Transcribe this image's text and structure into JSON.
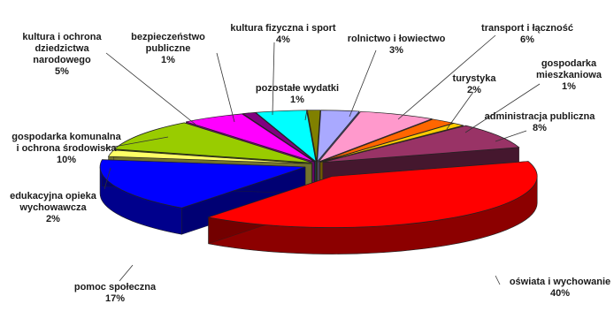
{
  "chart_data": {
    "type": "pie",
    "style": "3d-exploded",
    "legend": "none",
    "slices": [
      {
        "label": "rolnictwo i łowiectwo",
        "percent_text": "3%",
        "value": 3,
        "color": "#a9a9ff"
      },
      {
        "label": "transport i łączność",
        "percent_text": "6%",
        "value": 6,
        "color": "#ff99cc"
      },
      {
        "label": "turystyka",
        "percent_text": "2%",
        "value": 2,
        "color": "#ff6600"
      },
      {
        "label": "gospodarka mieszkaniowa",
        "percent_text": "1%",
        "value": 1,
        "color": "#ffcc00"
      },
      {
        "label": "administracja publiczna",
        "percent_text": "8%",
        "value": 8,
        "color": "#993366"
      },
      {
        "label": "oświata i wychowanie",
        "percent_text": "40%",
        "value": 40,
        "color": "#ff0000"
      },
      {
        "label": "pomoc społeczna",
        "percent_text": "17%",
        "value": 17,
        "color": "#0000ff"
      },
      {
        "label": "edukacyjna opieka wychowawcza",
        "percent_text": "2%",
        "value": 2,
        "color": "#ffff66"
      },
      {
        "label": "gospodarka komunalna i ochrona środowiska",
        "percent_text": "10%",
        "value": 10,
        "color": "#99cc00"
      },
      {
        "label": "kultura i ochrona dziedzictwa narodowego",
        "percent_text": "5%",
        "value": 5,
        "color": "#ff00ff"
      },
      {
        "label": "bezpieczeństwo publiczne",
        "percent_text": "1%",
        "value": 1,
        "color": "#800080"
      },
      {
        "label": "kultura fizyczna i sport",
        "percent_text": "4%",
        "value": 4,
        "color": "#00ffff"
      },
      {
        "label": "pozostałe wydatki",
        "percent_text": "1%",
        "value": 1,
        "color": "#808000"
      }
    ]
  },
  "labels": [
    {
      "lines": [
        "rolnictwo i łowiectwo",
        "3%"
      ]
    },
    {
      "lines": [
        "transport i łączność",
        "6%"
      ]
    },
    {
      "lines": [
        "turystyka",
        "2%"
      ]
    },
    {
      "lines": [
        "gospodarka",
        "mieszkaniowa",
        "1%"
      ]
    },
    {
      "lines": [
        "administracja publiczna",
        "8%"
      ]
    },
    {
      "lines": [
        "oświata i wychowanie",
        "40%"
      ]
    },
    {
      "lines": [
        "pomoc społeczna",
        "17%"
      ]
    },
    {
      "lines": [
        "edukacyjna opieka",
        "wychowawcza",
        "2%"
      ]
    },
    {
      "lines": [
        "gospodarka komunalna",
        "i ochrona środowiska",
        "10%"
      ]
    },
    {
      "lines": [
        "kultura i ochrona",
        "dziedzictwa",
        "narodowego",
        "5%"
      ]
    },
    {
      "lines": [
        "bezpieczeństwo",
        "publiczne",
        "1%"
      ]
    },
    {
      "lines": [
        "kultura fizyczna i sport",
        "4%"
      ]
    },
    {
      "lines": [
        "pozostałe wydatki",
        "1%"
      ]
    }
  ]
}
